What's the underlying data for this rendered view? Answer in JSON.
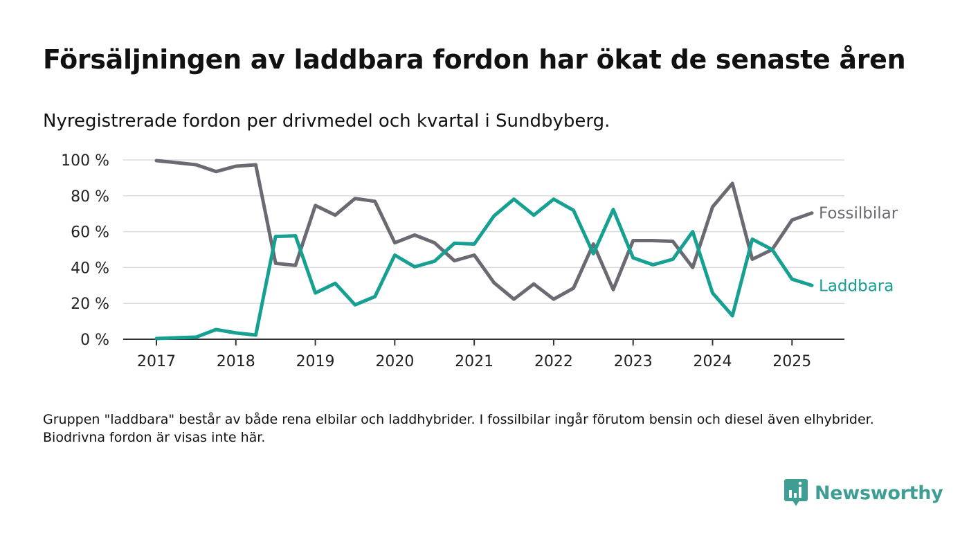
{
  "title": "Försäljningen av laddbara fordon har ökat de senaste åren",
  "subtitle": "Nyregistrerade fordon per drivmedel och kvartal i Sundbyberg.",
  "footnote": "Gruppen \"laddbara\" består av både rena elbilar och laddhybrider. I fossilbilar ingår förutom bensin och diesel även elhybrider. Biodrivna fordon är visas inte här.",
  "brand": {
    "name": "Newsworthy",
    "icon": "newsworthy-logo-icon",
    "color": "#3f9e93"
  },
  "chart_data": {
    "type": "line",
    "xlabel": "",
    "ylabel": "",
    "xlim": [
      2017,
      2025.25
    ],
    "ylim": [
      0,
      100
    ],
    "y_ticks": [
      0,
      20,
      40,
      60,
      80,
      100
    ],
    "y_tick_labels": [
      "0 %",
      "20 %",
      "40 %",
      "60 %",
      "80 %",
      "100 %"
    ],
    "x_ticks": [
      2017,
      2018,
      2019,
      2020,
      2021,
      2022,
      2023,
      2024,
      2025
    ],
    "x_tick_labels": [
      "2017",
      "2018",
      "2019",
      "2020",
      "2021",
      "2022",
      "2023",
      "2024",
      "2025"
    ],
    "grid": true,
    "legend": "end-of-line labels",
    "x": [
      2017.0,
      2017.25,
      2017.5,
      2017.75,
      2018.0,
      2018.25,
      2018.5,
      2018.75,
      2019.0,
      2019.25,
      2019.5,
      2019.75,
      2020.0,
      2020.25,
      2020.5,
      2020.75,
      2021.0,
      2021.25,
      2021.5,
      2021.75,
      2022.0,
      2022.25,
      2022.5,
      2022.75,
      2023.0,
      2023.25,
      2023.5,
      2023.75,
      2024.0,
      2024.25,
      2024.5,
      2024.75,
      2025.0,
      2025.25
    ],
    "series": [
      {
        "name": "Fossilbilar",
        "color": "#6b6a72",
        "values": [
          99.6,
          98.5,
          97.3,
          93.5,
          96.5,
          97.3,
          42.3,
          41.2,
          74.6,
          69.2,
          78.5,
          76.9,
          53.8,
          58.1,
          53.8,
          43.8,
          46.9,
          31.5,
          22.3,
          30.8,
          22.3,
          28.5,
          53.1,
          27.7,
          55.0,
          55.0,
          54.6,
          40.0,
          73.8,
          86.9,
          44.6,
          50.0,
          66.5,
          70.4
        ]
      },
      {
        "name": "Laddbara",
        "color": "#16a092",
        "values": [
          0.4,
          0.8,
          1.2,
          5.4,
          3.5,
          2.3,
          57.3,
          57.7,
          25.8,
          31.2,
          19.2,
          23.8,
          46.9,
          40.4,
          43.5,
          53.5,
          53.1,
          68.8,
          78.1,
          69.2,
          78.1,
          71.9,
          47.7,
          72.3,
          45.4,
          41.5,
          44.6,
          60.0,
          25.8,
          13.1,
          55.8,
          50.0,
          33.5,
          30.0
        ]
      }
    ]
  }
}
